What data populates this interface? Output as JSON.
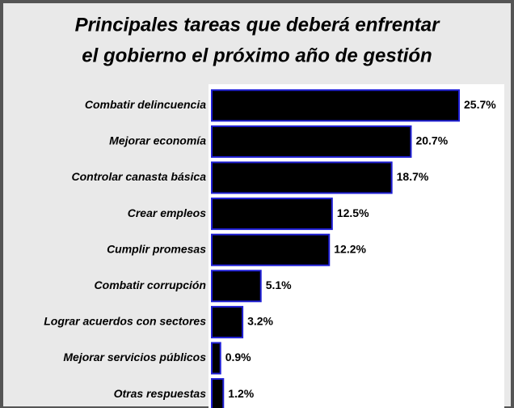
{
  "chart_data": {
    "type": "bar",
    "orientation": "horizontal",
    "title": [
      "Principales tareas que deberá enfrentar",
      "el gobierno el próximo año de gestión"
    ],
    "categories": [
      "Combatir delincuencia",
      "Mejorar economía",
      "Controlar canasta básica",
      "Crear empleos",
      "Cumplir promesas",
      "Combatir corrupción",
      "Lograr acuerdos con sectores",
      "Mejorar servicios públicos",
      "Otras respuestas"
    ],
    "values": [
      25.7,
      20.7,
      18.7,
      12.5,
      12.2,
      5.1,
      3.2,
      0.9,
      1.2
    ],
    "value_labels": [
      "25.7%",
      "20.7%",
      "18.7%",
      "12.5%",
      "12.2%",
      "5.1%",
      "3.2%",
      "0.9%",
      "1.2%"
    ],
    "color": "#000000",
    "edge_color": "#1f1fd6"
  }
}
